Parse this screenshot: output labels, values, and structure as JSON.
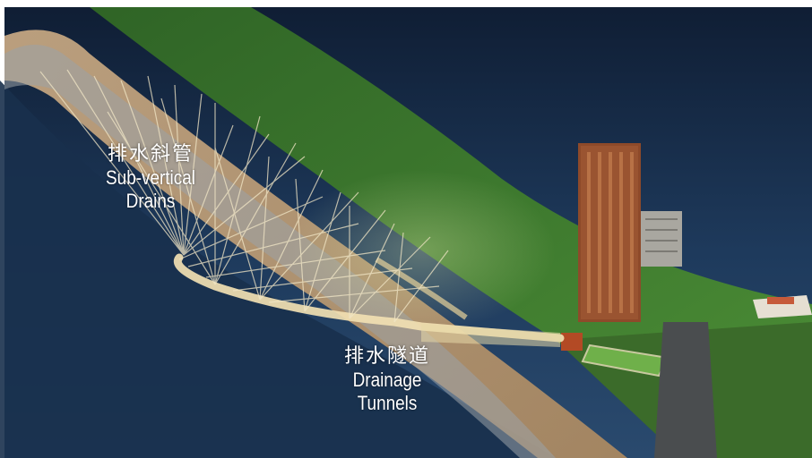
{
  "labels": {
    "drains": {
      "zh": "排水斜管",
      "en_line1": "Sub-vertical",
      "en_line2": "Drains"
    },
    "tunnels": {
      "zh": "排水隧道",
      "en_line1": "Drainage",
      "en_line2": "Tunnels"
    }
  },
  "colors": {
    "sky_dark": "#0f1d33",
    "sky_mid": "#1e3a5c",
    "vegetation": "#3f7a2e",
    "soil": "#c9a574",
    "tunnel": "#f1dfb2",
    "building": "#8e4a2a"
  }
}
